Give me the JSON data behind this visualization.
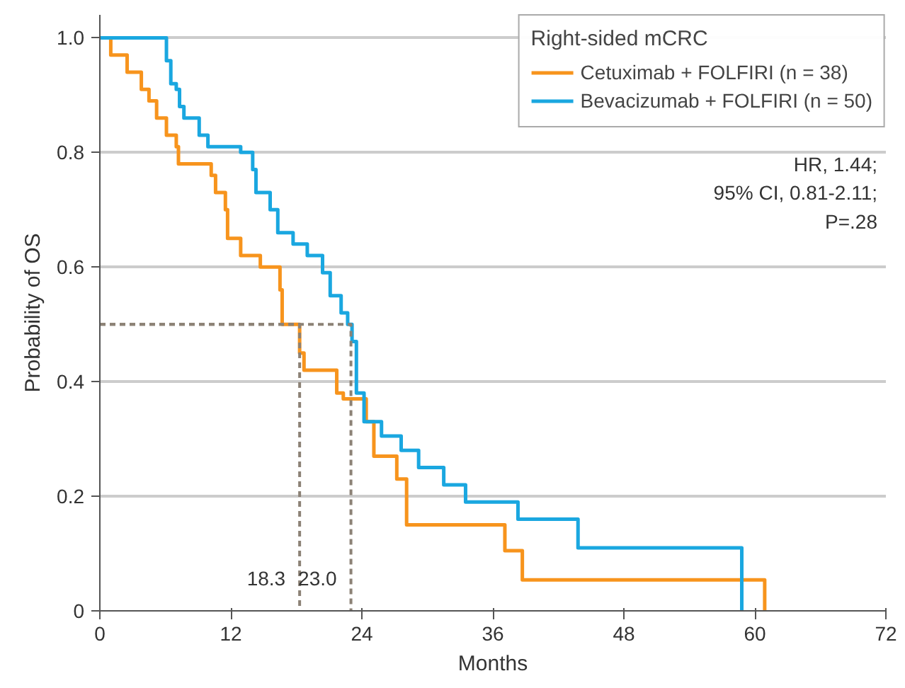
{
  "chart_data": {
    "type": "step",
    "xlabel": "Months",
    "ylabel": "Probability of OS",
    "legend_title": "Right-sided mCRC",
    "legend": "top right",
    "grid": "y",
    "line_style": "solid",
    "xlim": [
      0,
      72
    ],
    "xticks": [
      0,
      12,
      24,
      36,
      48,
      60,
      72
    ],
    "ylim": [
      0,
      1.04
    ],
    "yticks": [
      0,
      0.2,
      0.4,
      0.6,
      0.8,
      {
        "value": 1,
        "label": "1.0"
      }
    ],
    "series": [
      {
        "name": "Cetuximab + FOLFIRI (n = 38)",
        "color": "#f7941d",
        "x": [
          0,
          1.0,
          2.5,
          3.8,
          4.5,
          5.2,
          6.1,
          7.0,
          7.2,
          10.2,
          10.6,
          11.5,
          11.7,
          12.9,
          14.7,
          16.5,
          16.7,
          18.3,
          18.7,
          21.7,
          22.3,
          24.4,
          25.1,
          27.2,
          28.1,
          37.1,
          38.7,
          60.9
        ],
        "values": [
          1,
          0.97,
          0.94,
          0.91,
          0.89,
          0.86,
          0.83,
          0.81,
          0.78,
          0.76,
          0.73,
          0.7,
          0.65,
          0.62,
          0.6,
          0.56,
          0.5,
          0.45,
          0.42,
          0.38,
          0.37,
          0.33,
          0.27,
          0.23,
          0.15,
          0.105,
          0.054,
          0
        ]
      },
      {
        "name": "Bevacizumab + FOLFIRI (n = 50)",
        "color": "#1aa7e0",
        "x": [
          0,
          6.1,
          6.5,
          7.0,
          7.3,
          7.7,
          9.1,
          9.9,
          12.9,
          14.0,
          14.3,
          15.6,
          16.3,
          17.7,
          19.0,
          20.4,
          21.1,
          22.1,
          22.7,
          23.1,
          23.5,
          24.2,
          25.8,
          27.6,
          29.2,
          31.5,
          33.5,
          38.3,
          43.8,
          58.8
        ],
        "values": [
          1,
          0.96,
          0.92,
          0.91,
          0.88,
          0.86,
          0.83,
          0.81,
          0.8,
          0.77,
          0.73,
          0.7,
          0.66,
          0.64,
          0.62,
          0.59,
          0.55,
          0.52,
          0.5,
          0.47,
          0.38,
          0.33,
          0.305,
          0.28,
          0.25,
          0.22,
          0.19,
          0.16,
          0.11,
          0
        ]
      },
      {
        "type": "line",
        "line_style": "dashed",
        "color": "#8c8276",
        "x": [
          0,
          18.3,
          18.3
        ],
        "values": [
          0.5,
          0.5,
          0
        ]
      },
      {
        "type": "line",
        "line_style": "dashed",
        "color": "#8c8276",
        "x": [
          0,
          23.0,
          23.0
        ],
        "values": [
          0.5,
          0.5,
          0
        ]
      }
    ],
    "annotations": [
      "HR, 1.44;",
      "95% CI, 0.81-2.11;",
      "P=.28",
      {
        "text": "18.3",
        "x": 18.3,
        "y": 0
      },
      {
        "text": "23.0",
        "x": 23.0,
        "y": 0
      }
    ]
  }
}
